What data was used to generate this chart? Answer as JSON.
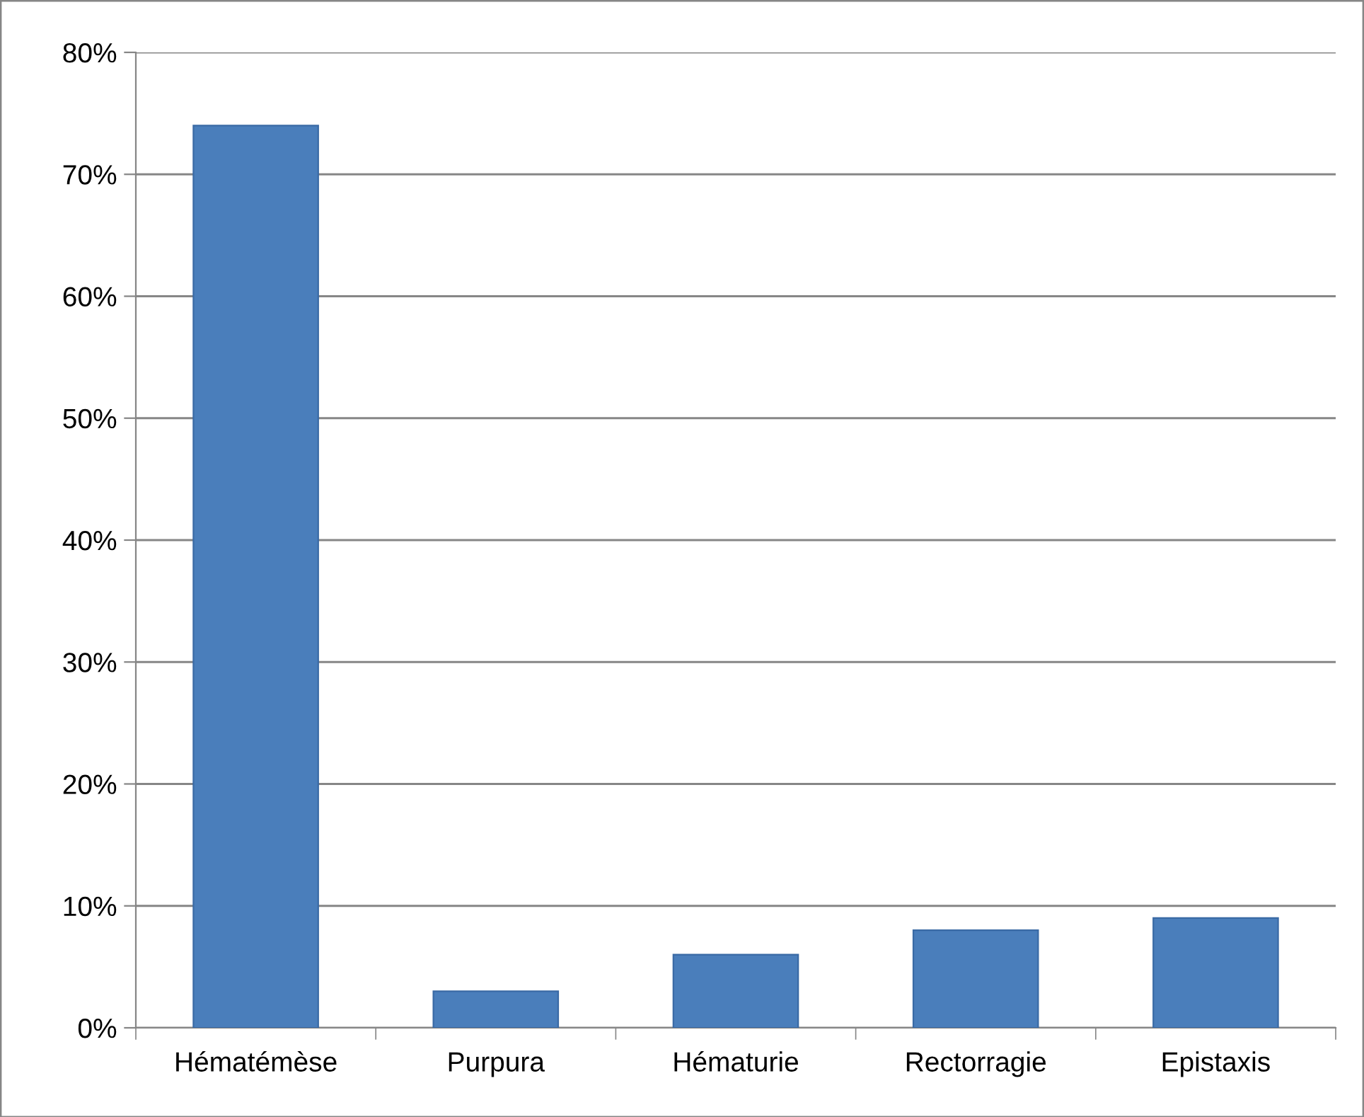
{
  "chart_data": {
    "type": "bar",
    "categories": [
      "Hématémèse",
      "Purpura",
      "Hématurie",
      "Rectorragie",
      "Epistaxis"
    ],
    "values": [
      74,
      3,
      6,
      8,
      9
    ],
    "color": "#4a7ebb",
    "ylim": [
      0,
      80
    ],
    "yticks": [
      {
        "value": 0,
        "label": "0%"
      },
      {
        "value": 10,
        "label": "10%"
      },
      {
        "value": 20,
        "label": "20%"
      },
      {
        "value": 30,
        "label": "30%"
      },
      {
        "value": 40,
        "label": "40%"
      },
      {
        "value": 50,
        "label": "50%"
      },
      {
        "value": 60,
        "label": "60%"
      },
      {
        "value": 70,
        "label": "70%"
      },
      {
        "value": 80,
        "label": "80%"
      }
    ],
    "grid": "y"
  }
}
